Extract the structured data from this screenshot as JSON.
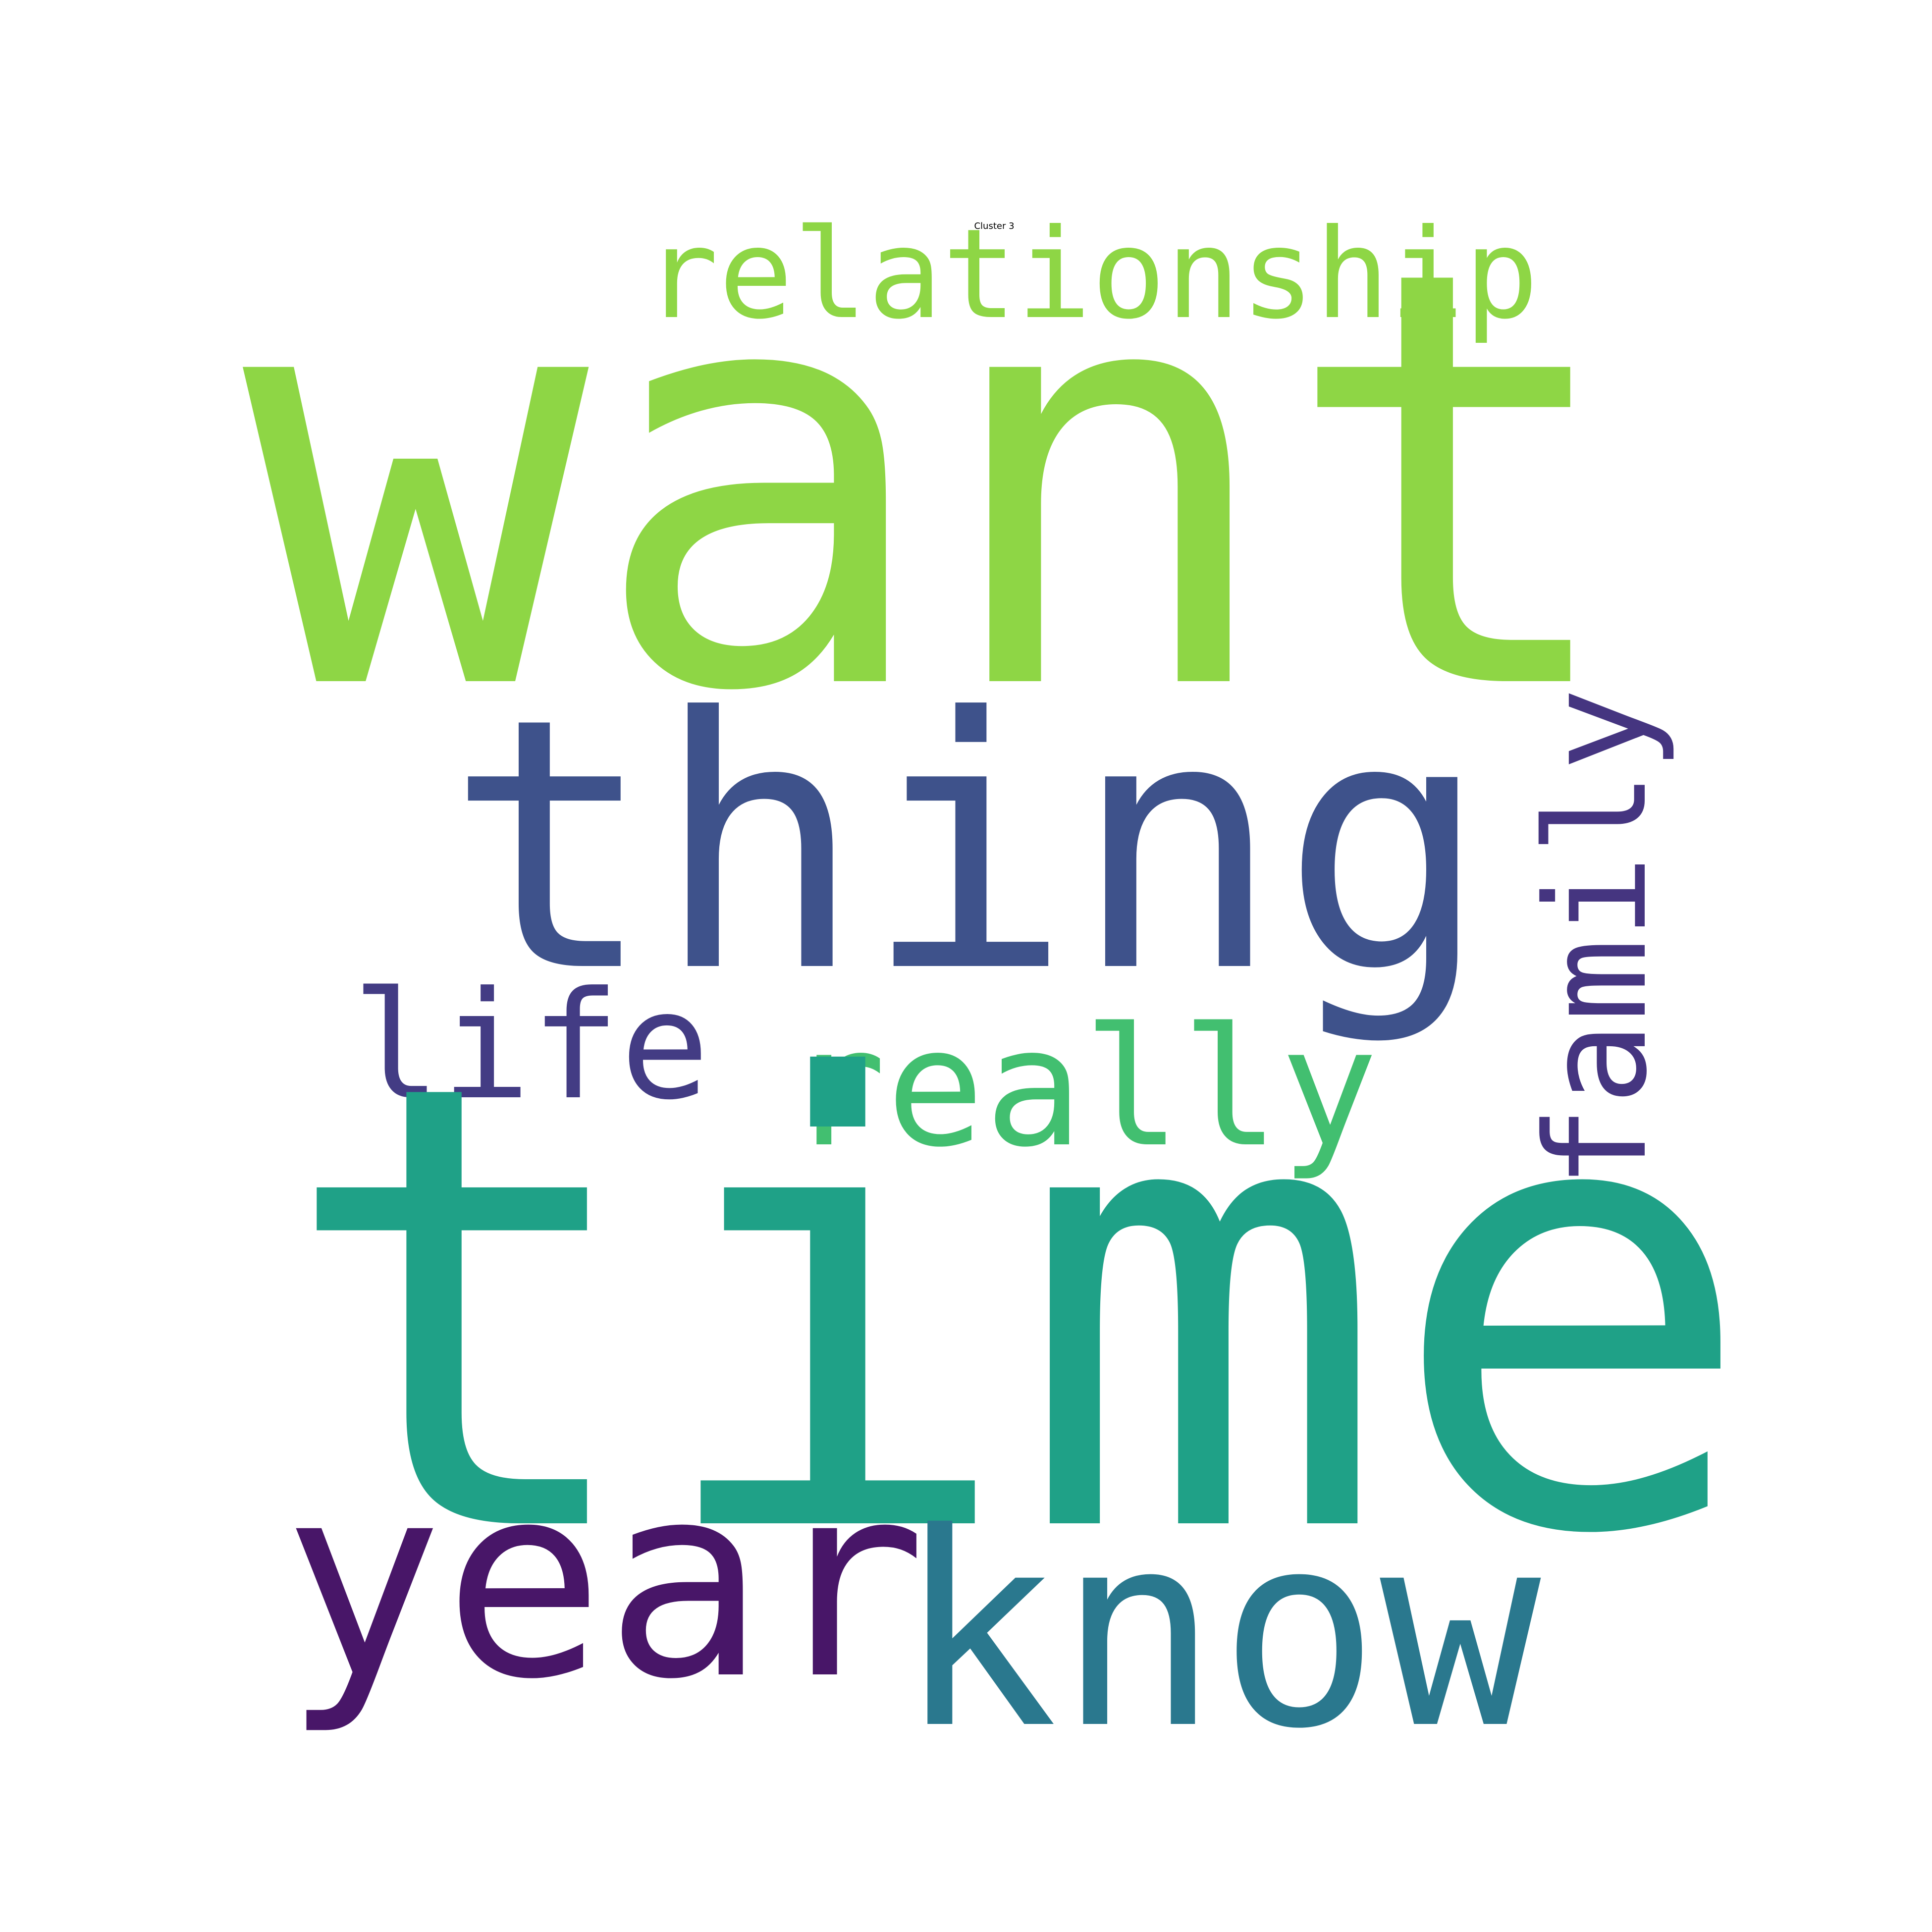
{
  "title": "Cluster 3",
  "words": [
    {
      "text": "want",
      "color": "#8ed645",
      "orientation": "horizontal"
    },
    {
      "text": "relationship",
      "color": "#8ed645",
      "orientation": "horizontal"
    },
    {
      "text": "thing",
      "color": "#3e528b",
      "orientation": "horizontal"
    },
    {
      "text": "family",
      "color": "#453580",
      "orientation": "vertical"
    },
    {
      "text": "life",
      "color": "#433c84",
      "orientation": "horizontal"
    },
    {
      "text": "really",
      "color": "#42bf70",
      "orientation": "horizontal"
    },
    {
      "text": "time",
      "color": "#1fa187",
      "orientation": "horizontal"
    },
    {
      "text": "year",
      "color": "#481668",
      "orientation": "horizontal"
    },
    {
      "text": "know",
      "color": "#2a788e",
      "orientation": "horizontal"
    }
  ]
}
